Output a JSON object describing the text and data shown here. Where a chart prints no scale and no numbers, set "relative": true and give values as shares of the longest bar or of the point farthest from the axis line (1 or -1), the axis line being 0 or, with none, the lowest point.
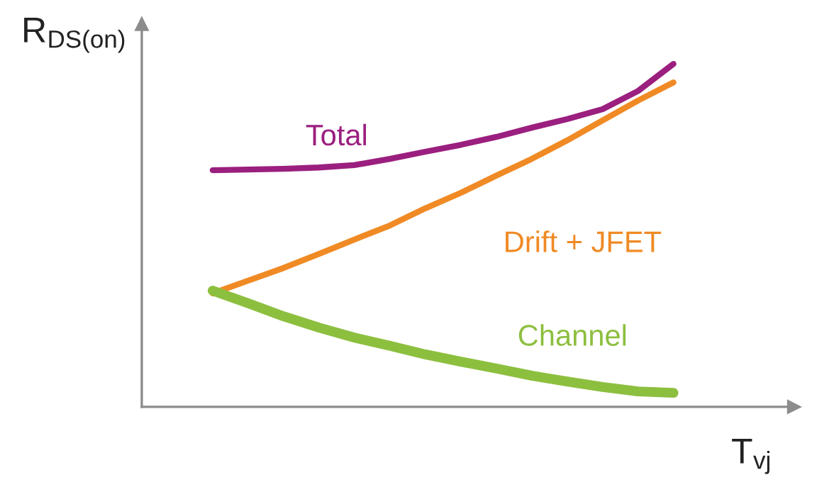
{
  "chart_data": {
    "type": "line",
    "relative": true,
    "xlabel": "T$_{vj}$",
    "ylabel": "R$_{DS(on)}$",
    "categories": [
      null,
      null,
      null,
      null,
      null,
      null,
      null,
      null,
      null,
      null,
      null,
      null,
      null,
      null
    ],
    "series": [
      {
        "name": "Total",
        "color": "#9b1f7f",
        "values": [
          0.69,
          0.692,
          0.694,
          0.698,
          0.705,
          0.723,
          0.744,
          0.764,
          0.787,
          0.814,
          0.839,
          0.868,
          0.921,
          1
        ]
      },
      {
        "name": "Drift + JFET",
        "color": "#f08a24",
        "values": [
          0.331,
          0.368,
          0.405,
          0.446,
          0.488,
          0.529,
          0.579,
          0.624,
          0.674,
          0.723,
          0.777,
          0.835,
          0.893,
          0.946
        ]
      },
      {
        "name": "Channel",
        "color": "#8dbf3f",
        "values": [
          0.339,
          0.302,
          0.264,
          0.231,
          0.202,
          0.178,
          0.153,
          0.132,
          0.112,
          0.091,
          0.074,
          0.058,
          0.045,
          0.041
        ]
      }
    ],
    "grid": false,
    "legend": false,
    "marker": "none",
    "line_style": "solid"
  }
}
